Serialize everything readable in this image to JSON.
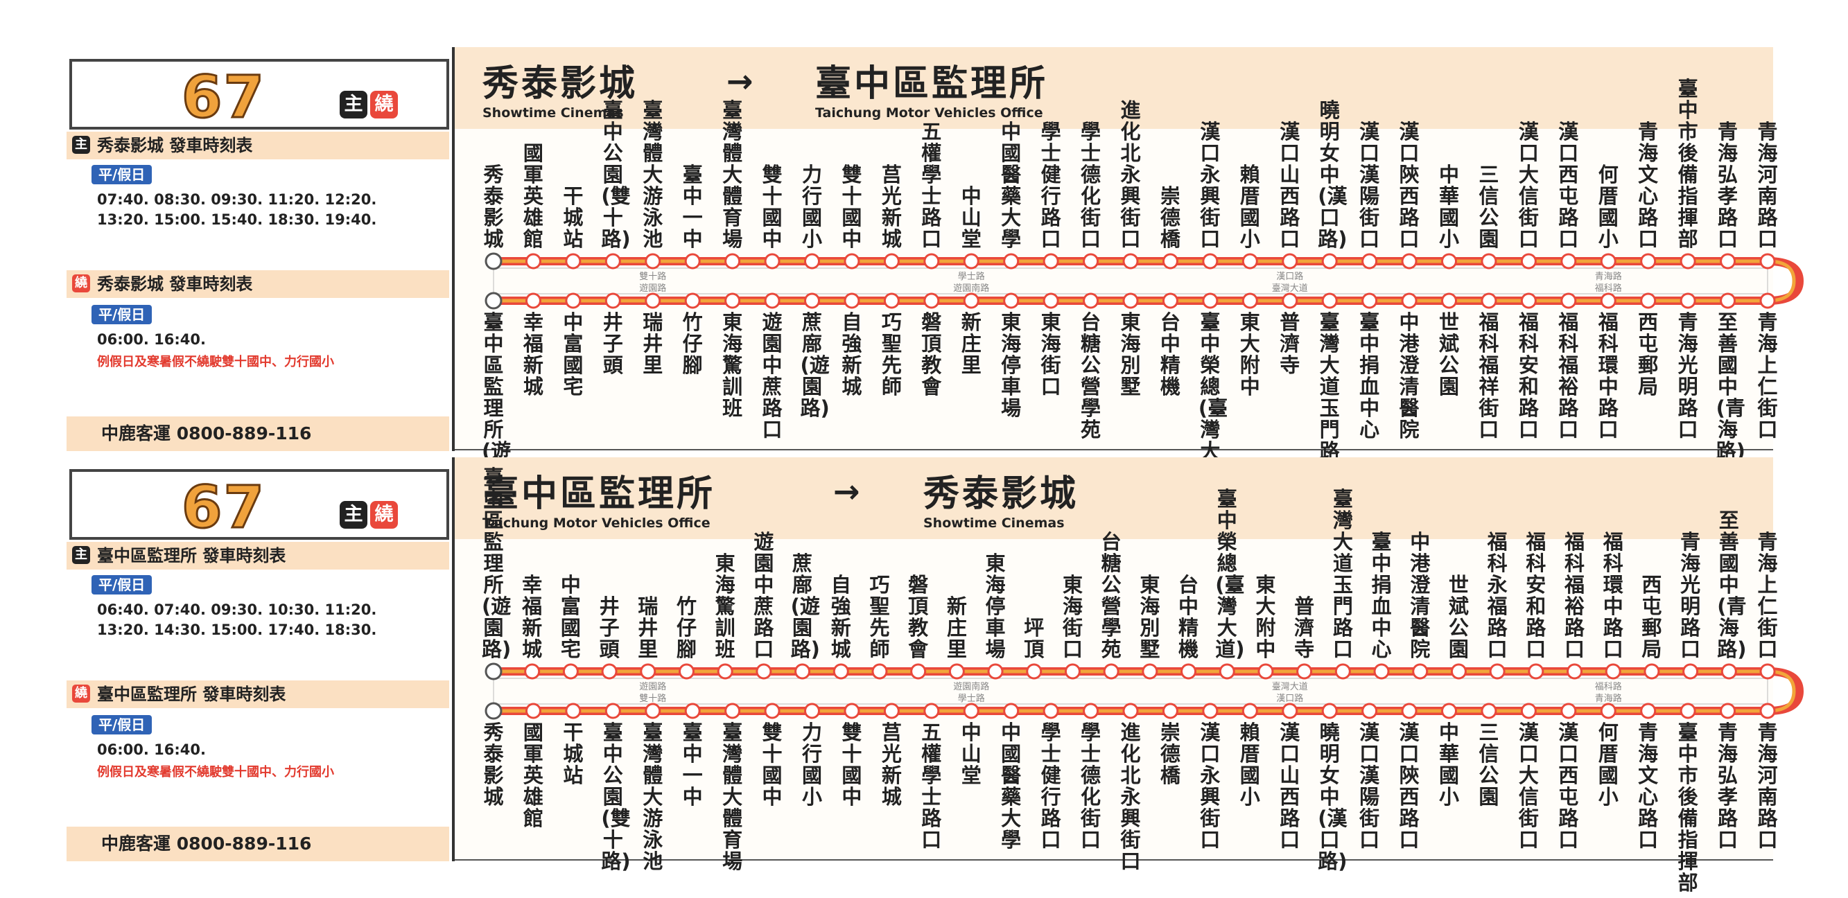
{
  "route_number": "67",
  "badges": {
    "main": "主",
    "detour": "繞"
  },
  "company": "中鹿客運  0800-889-116",
  "colors": {
    "line_red": "#e9483b",
    "line_orange": "#f2a53a",
    "band": "#fbe7cf",
    "day_tag": "#2f63b6"
  },
  "panels": [
    {
      "origin_zh": "秀泰影城",
      "origin_en": "Showtime Cinemas",
      "arrow": "→",
      "dest_zh": "臺中區監理所",
      "dest_en": "Taichung Motor Vehicles Office",
      "main_schedule": {
        "title": "秀泰影城  發車時刻表",
        "day": "平/假日",
        "times_line1": "07:40. 08:30. 09:30. 11:20. 12:20.",
        "times_line2": "13:20. 15:00. 15:40. 18:30. 19:40."
      },
      "detour_schedule": {
        "title": "秀泰影城  發車時刻表",
        "day": "平/假日",
        "times_line1": "06:00. 16:40.",
        "note": "例假日及寒暑假不繞駛雙十國中、力行國小"
      },
      "top_stops": [
        "秀泰影城",
        "國軍英雄館",
        "干城站",
        "臺中公園(雙十路)",
        "臺灣體大游泳池",
        "臺中一中",
        "臺灣體大體育場",
        "雙十國中",
        "力行國小",
        "雙十國中",
        "莒光新城",
        "五權學士路口",
        "中山堂",
        "中國醫藥大學",
        "學士健行路口",
        "學士德化街口",
        "進化北永興街口",
        "崇德橋",
        "漢口永興街口",
        "賴厝國小",
        "漢口山西路口",
        "曉明女中(漢口路)",
        "漢口漢陽街口",
        "漢口陝西路口",
        "中華國小",
        "三信公園",
        "漢口大信街口",
        "漢口西屯路口",
        "何厝國小",
        "青海文心路口",
        "臺中市後備指揮部",
        "青海弘孝路口",
        "青海河南路口"
      ],
      "bottom_stops": [
        "臺中區監理所(遊園路)",
        "幸福新城",
        "中富國宅",
        "井子頭",
        "瑞井里",
        "竹仔腳",
        "東海驚訓班",
        "遊園中蔗路口",
        "蔗廍(遊園路)",
        "自強新城",
        "巧聖先師",
        "磐頂教會",
        "新庄里",
        "東海停車場",
        "東海街口",
        "台糖公營學苑",
        "東海別墅",
        "台中精機",
        "臺中榮總(臺灣大道)",
        "東大附中",
        "普濟寺",
        "臺灣大道玉門路口",
        "臺中捐血中心",
        "中港澄清醫院",
        "世斌公園",
        "福科福祥街口",
        "福科安和路口",
        "福科福裕路口",
        "福科環中路口",
        "西屯郵局",
        "青海光明路口",
        "至善國中(青海路)",
        "青海上仁街口"
      ],
      "top_roads": [
        "雙十路",
        "學士路",
        "漢口路",
        "青海路"
      ],
      "bottom_roads": [
        "遊園路",
        "遊園南路",
        "臺灣大道",
        "福科路"
      ]
    },
    {
      "origin_zh": "臺中區監理所",
      "origin_en": "Taichung Motor Vehicles Office",
      "arrow": "→",
      "dest_zh": "秀泰影城",
      "dest_en": "Showtime Cinemas",
      "main_schedule": {
        "title": "臺中區監理所  發車時刻表",
        "day": "平/假日",
        "times_line1": "06:40. 07:40. 09:30. 10:30. 11:20.",
        "times_line2": "13:20. 14:30. 15:00. 17:40. 18:30."
      },
      "detour_schedule": {
        "title": "臺中區監理所  發車時刻表",
        "day": "平/假日",
        "times_line1": "06:00. 16:40.",
        "note": "例假日及寒暑假不繞駛雙十國中、力行國小"
      },
      "top_stops": [
        "臺中區監理所(遊園路)",
        "幸福新城",
        "中富國宅",
        "井子頭",
        "瑞井里",
        "竹仔腳",
        "東海驚訓班",
        "遊園中蔗路口",
        "蔗廍(遊園路)",
        "自強新城",
        "巧聖先師",
        "磐頂教會",
        "新庄里",
        "東海停車場",
        "坪頂",
        "東海街口",
        "台糖公營學苑",
        "東海別墅",
        "台中精機",
        "臺中榮總(臺灣大道)",
        "東大附中",
        "普濟寺",
        "臺灣大道玉門路口",
        "臺中捐血中心",
        "中港澄清醫院",
        "世斌公園",
        "福科永福路口",
        "福科安和路口",
        "福科福裕路口",
        "福科環中路口",
        "西屯郵局",
        "青海光明路口",
        "至善國中(青海路)",
        "青海上仁街口"
      ],
      "bottom_stops": [
        "秀泰影城",
        "國軍英雄館",
        "干城站",
        "臺中公園(雙十路)",
        "臺灣體大游泳池",
        "臺中一中",
        "臺灣體大體育場",
        "雙十國中",
        "力行國小",
        "雙十國中",
        "莒光新城",
        "五權學士路口",
        "中山堂",
        "中國醫藥大學",
        "學士健行路口",
        "學士德化街口",
        "進化北永興街口",
        "崇德橋",
        "漢口永興街口",
        "賴厝國小",
        "漢口山西路口",
        "曉明女中(漢口路)",
        "漢口漢陽街口",
        "漢口陝西路口",
        "中華國小",
        "三信公園",
        "漢口大信街口",
        "漢口西屯路口",
        "何厝國小",
        "青海文心路口",
        "臺中市後備指揮部",
        "青海弘孝路口",
        "青海河南路口"
      ],
      "top_roads": [
        "遊園路",
        "遊園南路",
        "臺灣大道",
        "福科路"
      ],
      "bottom_roads": [
        "雙十路",
        "學士路",
        "漢口路",
        "青海路"
      ]
    }
  ]
}
